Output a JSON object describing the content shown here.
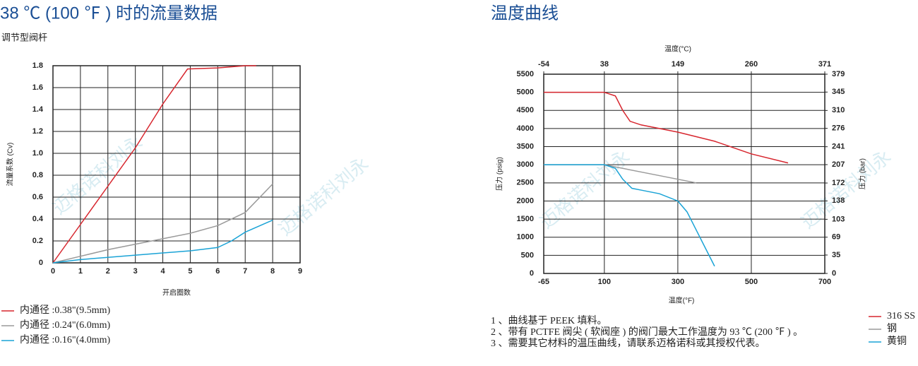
{
  "watermark": "迈格诺科刘永",
  "notes": [
    "1 、曲线基于 PEEK 填料。",
    "2 、带有 PCTFE 阀尖 ( 软阀座 ) 的阀门最大工作温度为 93 ℃ (200 ℉ ) 。",
    "3 、需要其它材料的温压曲线，请联系迈格诺科或其授权代表。"
  ],
  "chart_data": [
    {
      "type": "line",
      "title": "38 ℃ (100 ℉ ) 时的流量数据",
      "subtitle": "调节型阀杆",
      "xlabel": "开启圈数",
      "ylabel": "流量系数 (Cv)",
      "xlim": [
        0,
        9
      ],
      "xticks": [
        0,
        1,
        2,
        3,
        4,
        5,
        6,
        7,
        8,
        9
      ],
      "ylim": [
        0,
        1.8
      ],
      "yticks": [
        0,
        0.2,
        0.4,
        0.6,
        0.8,
        {
          "value": 1,
          "label": "1.0"
        },
        1.2,
        1.4,
        1.6,
        1.8
      ],
      "grid": true,
      "legend": "bottom-left",
      "series": [
        {
          "name": "内通径 :0.38\"(9.5mm)",
          "color": "#d7262e",
          "x": [
            0,
            1,
            2,
            3,
            4,
            4.9,
            6,
            7,
            7.4
          ],
          "values": [
            0,
            0.35,
            0.7,
            1.05,
            1.45,
            1.77,
            1.78,
            1.8,
            1.8
          ]
        },
        {
          "name": "内通径 :0.24\"(6.0mm)",
          "color": "#9a9a9a",
          "x": [
            0,
            1,
            2,
            3,
            4,
            5,
            6,
            7,
            8
          ],
          "values": [
            0,
            0.06,
            0.12,
            0.17,
            0.22,
            0.27,
            0.34,
            0.46,
            0.72
          ]
        },
        {
          "name": "内通径 :0.16\"(4.0mm)",
          "color": "#1aa3d6",
          "x": [
            0,
            1,
            2,
            3,
            4,
            5,
            6,
            6.5,
            7,
            8
          ],
          "values": [
            0,
            0.03,
            0.05,
            0.07,
            0.09,
            0.11,
            0.14,
            0.2,
            0.28,
            0.39
          ]
        }
      ]
    },
    {
      "type": "line",
      "title": "温度曲线",
      "xlabel": "温度(°F)",
      "x2label": "温度(°C)",
      "ylabel": "压力 (psig)",
      "y2label": "压力 (bar)",
      "xlim": [
        -65,
        700
      ],
      "xticks": [
        -65,
        100,
        300,
        500,
        700
      ],
      "x2ticks": [
        {
          "value": -65,
          "label": "-54"
        },
        {
          "value": 100,
          "label": "38"
        },
        {
          "value": 300,
          "label": "149"
        },
        {
          "value": 500,
          "label": "260"
        },
        {
          "value": 700,
          "label": "371"
        }
      ],
      "ylim": [
        0,
        5500
      ],
      "yticks": [
        0,
        500,
        1000,
        1500,
        2000,
        2500,
        3000,
        3500,
        4000,
        4500,
        5000,
        5500
      ],
      "y2lim": [
        0,
        379
      ],
      "y2ticks": [
        0,
        35,
        69,
        103,
        138,
        172,
        207,
        241,
        276,
        310,
        345,
        379
      ],
      "grid": true,
      "legend": "bottom-right",
      "series": [
        {
          "name": "316 SS",
          "color": "#d7262e",
          "x": [
            -65,
            100,
            130,
            150,
            170,
            200,
            300,
            400,
            500,
            600
          ],
          "values": [
            5000,
            5000,
            4900,
            4500,
            4200,
            4100,
            3900,
            3650,
            3300,
            3050
          ]
        },
        {
          "name": "钢",
          "color": "#9a9a9a",
          "x": [
            -65,
            100,
            200,
            300,
            350
          ],
          "values": [
            3000,
            3000,
            2800,
            2600,
            2500
          ]
        },
        {
          "name": "黄铜",
          "color": "#1aa3d6",
          "x": [
            -65,
            100,
            130,
            150,
            175,
            200,
            250,
            300,
            325,
            350,
            375,
            400
          ],
          "values": [
            3000,
            3000,
            2900,
            2600,
            2350,
            2300,
            2200,
            2000,
            1700,
            1200,
            700,
            200
          ]
        }
      ]
    }
  ]
}
